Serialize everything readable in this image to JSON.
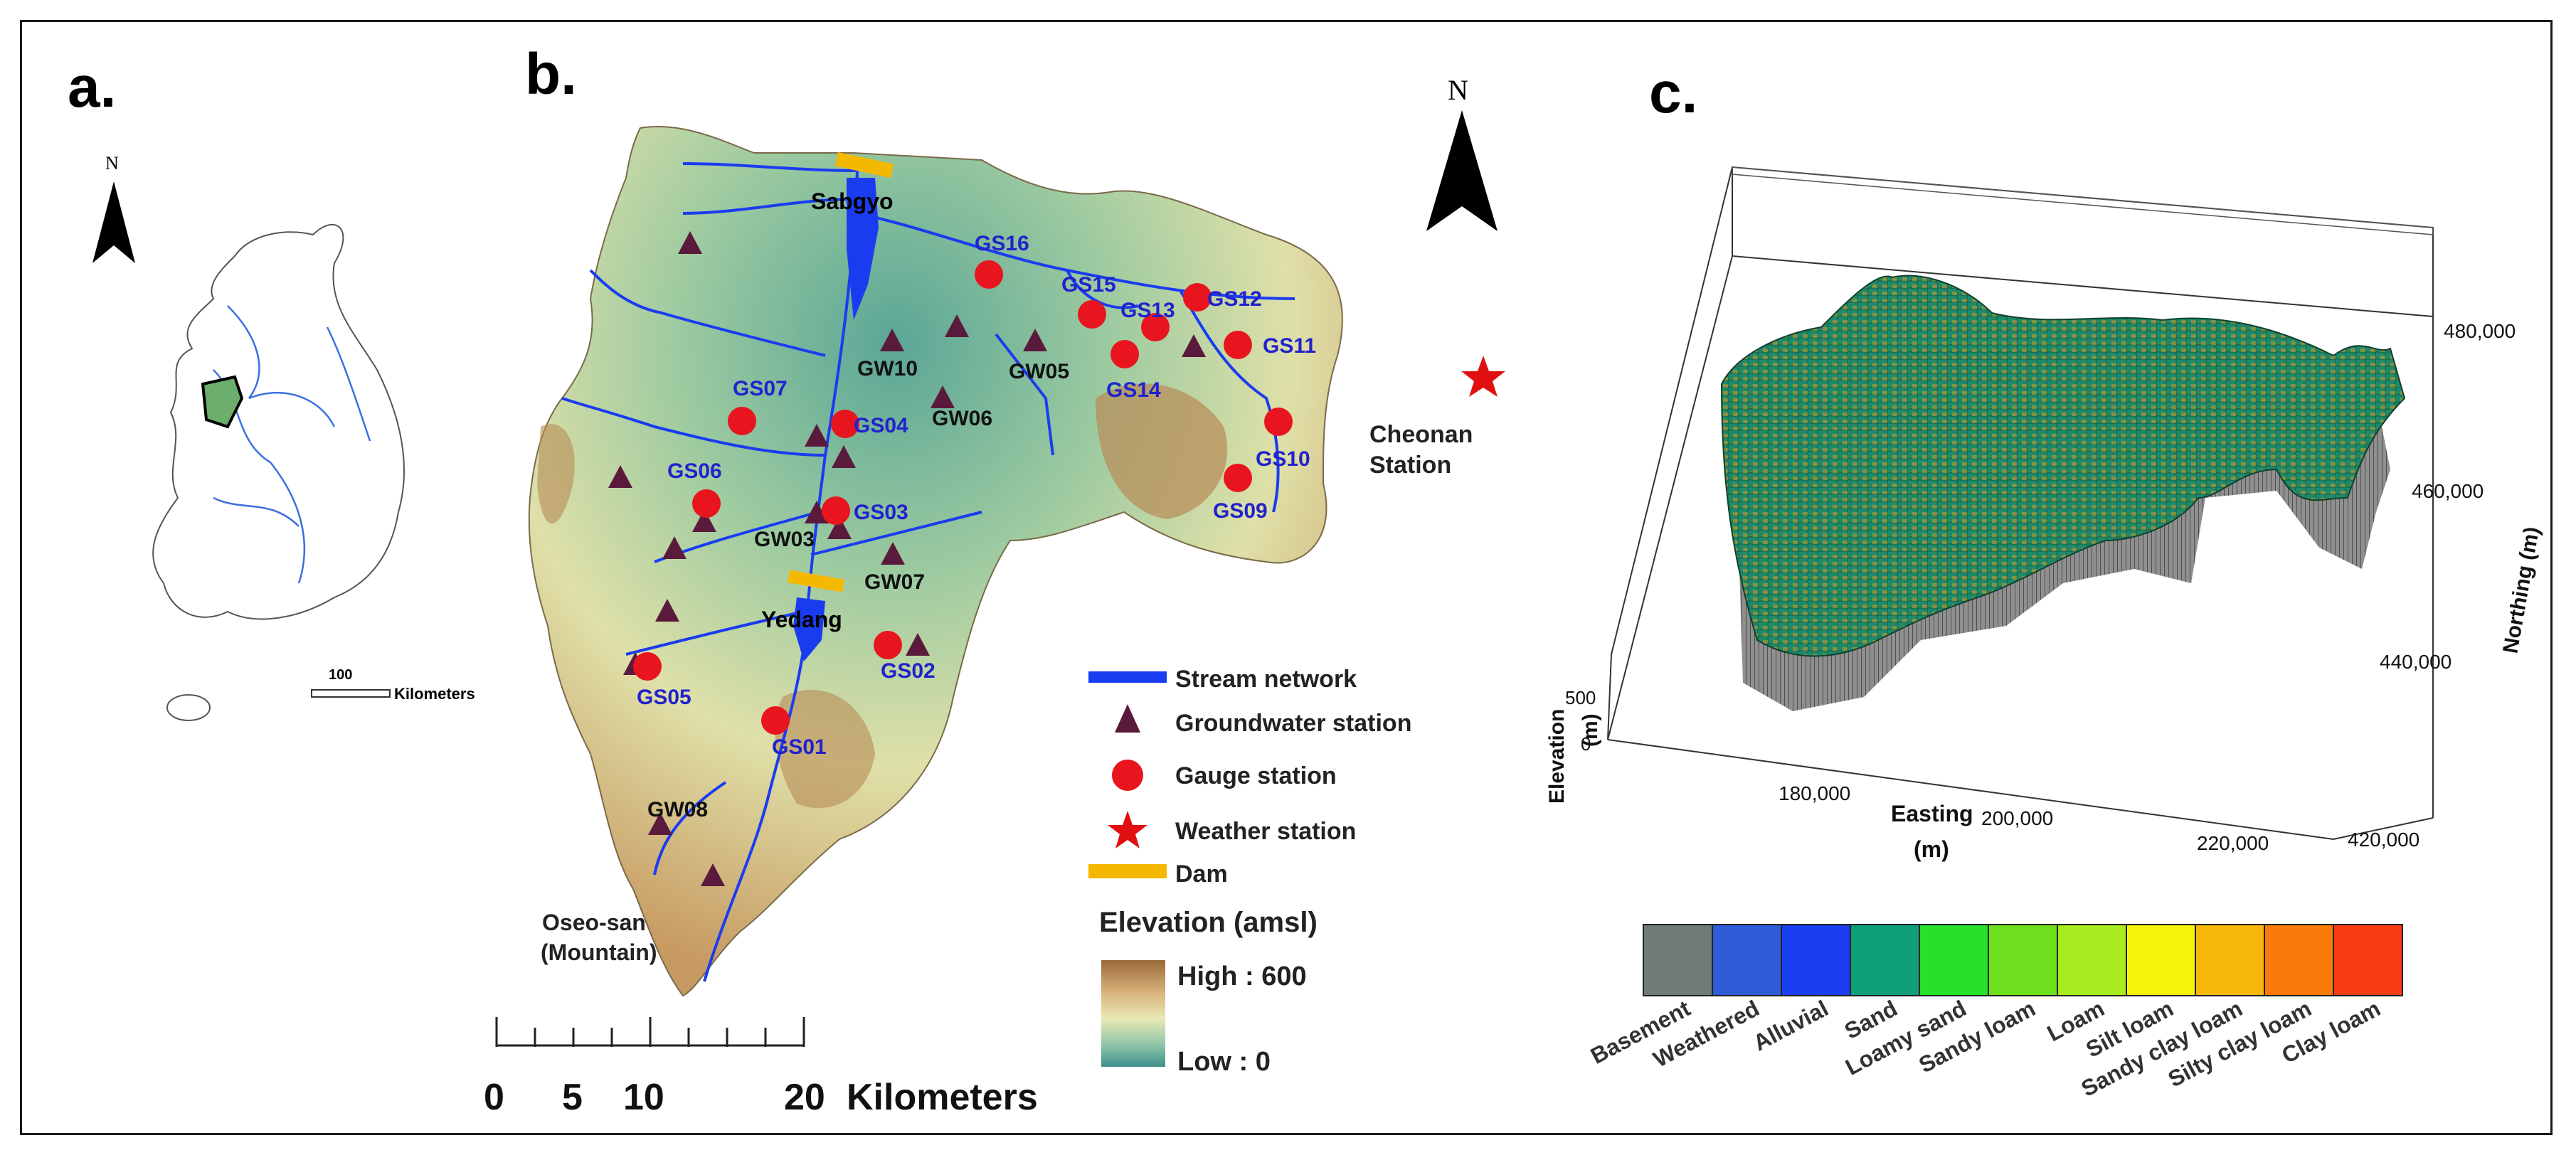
{
  "panel_a": {
    "label": "a.",
    "north_label": "N",
    "scale_value": "100",
    "scale_unit": "Kilometers"
  },
  "panel_b": {
    "label": "b.",
    "north_label": "N",
    "places": {
      "sabgyo": "Sabgyo",
      "yedang": "Yedang",
      "oseo_line1": "Oseo-san",
      "oseo_line2": "(Mountain)",
      "cheonan_line1": "Cheonan",
      "cheonan_line2": "Station"
    },
    "gauge_stations": [
      "GS01",
      "GS02",
      "GS03",
      "GS04",
      "GS05",
      "GS06",
      "GS07",
      "GS09",
      "GS10",
      "GS11",
      "GS12",
      "GS13",
      "GS14",
      "GS15",
      "GS16"
    ],
    "groundwater_stations": [
      "GW03",
      "GW05",
      "GW06",
      "GW07",
      "GW08",
      "GW10"
    ],
    "legend": {
      "stream": "Stream network",
      "groundwater": "Groundwater station",
      "gauge": "Gauge station",
      "weather": "Weather station",
      "dam": "Dam",
      "elevation_title": "Elevation (amsl)",
      "high": "High : 600",
      "low": "Low : 0"
    },
    "scale": {
      "ticks": [
        "0",
        "5",
        "10",
        "20"
      ],
      "unit": "Kilometers"
    },
    "colors": {
      "stream": "#1a3cf0",
      "gauge": "#e8141e",
      "groundwater": "#5a1a3c",
      "dam": "#f5b800",
      "weather": "#e01010"
    }
  },
  "panel_c": {
    "label": "c.",
    "elevation_axis": {
      "title": "Elevation",
      "unit": "(m)",
      "ticks": [
        "500",
        "0"
      ]
    },
    "easting_axis": {
      "title": "Easting",
      "unit": "(m)",
      "ticks": [
        "180,000",
        "200,000",
        "220,000"
      ]
    },
    "northing_axis": {
      "title": "Northing (m)",
      "ticks": [
        "480,000",
        "460,000",
        "440,000",
        "420,000"
      ]
    },
    "materials": [
      {
        "name": "Basement",
        "color": "#6e7b78"
      },
      {
        "name": "Weathered",
        "color": "#2e5cd6"
      },
      {
        "name": "Alluvial",
        "color": "#1a3ef0"
      },
      {
        "name": "Sand",
        "color": "#0fa07a"
      },
      {
        "name": "Loamy sand",
        "color": "#26e02a"
      },
      {
        "name": "Sandy loam",
        "color": "#6ee01e"
      },
      {
        "name": "Loam",
        "color": "#a8ec20"
      },
      {
        "name": "Silt loam",
        "color": "#f4f40a"
      },
      {
        "name": "Sandy clay loam",
        "color": "#f6b60a"
      },
      {
        "name": "Silty clay loam",
        "color": "#fa7a0a"
      },
      {
        "name": "Clay loam",
        "color": "#f83c12"
      }
    ]
  }
}
